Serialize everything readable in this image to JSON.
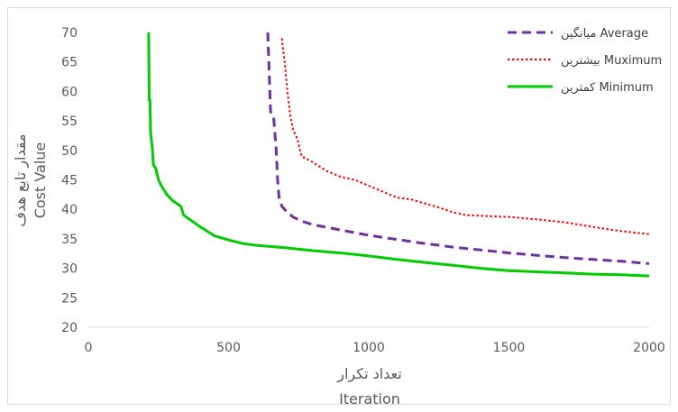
{
  "chart_data": {
    "type": "line",
    "xlabel": "Iteration",
    "xlabel_fa": "تعداد تکرار",
    "ylabel": "Cost Value",
    "ylabel_fa": "مقدار تابع هدف",
    "xlim": [
      0,
      2000
    ],
    "ylim": [
      20,
      70
    ],
    "xticks": [
      0,
      500,
      1000,
      1500,
      2000
    ],
    "yticks": [
      20,
      25,
      30,
      35,
      40,
      45,
      50,
      55,
      60,
      65,
      70
    ],
    "grid": false,
    "legend_position": "top-right",
    "series": [
      {
        "name": "Average",
        "name_fa": "میانگین",
        "label": "میانگین Average",
        "color": "#7030a0",
        "style": "dashed",
        "points": [
          [
            640,
            70
          ],
          [
            650,
            56.5
          ],
          [
            660,
            56
          ],
          [
            670,
            50
          ],
          [
            675,
            45
          ],
          [
            680,
            42
          ],
          [
            690,
            40.5
          ],
          [
            710,
            39.5
          ],
          [
            730,
            38.7
          ],
          [
            760,
            38
          ],
          [
            800,
            37.4
          ],
          [
            900,
            36.5
          ],
          [
            1000,
            35.6
          ],
          [
            1100,
            34.9
          ],
          [
            1200,
            34.2
          ],
          [
            1300,
            33.6
          ],
          [
            1400,
            33.1
          ],
          [
            1500,
            32.6
          ],
          [
            1600,
            32.2
          ],
          [
            1700,
            31.8
          ],
          [
            1800,
            31.5
          ],
          [
            1900,
            31.2
          ],
          [
            2000,
            30.8
          ]
        ]
      },
      {
        "name": "Muximum",
        "name_fa": "بیشترین",
        "label": "بیشترین Muximum",
        "color": "#ff0000",
        "style": "dotted",
        "points": [
          [
            690,
            69
          ],
          [
            700,
            65
          ],
          [
            710,
            60
          ],
          [
            720,
            56
          ],
          [
            730,
            53.5
          ],
          [
            745,
            52
          ],
          [
            760,
            49
          ],
          [
            800,
            48
          ],
          [
            850,
            46.5
          ],
          [
            900,
            45.5
          ],
          [
            950,
            45
          ],
          [
            1000,
            44
          ],
          [
            1050,
            43
          ],
          [
            1100,
            42
          ],
          [
            1150,
            41.7
          ],
          [
            1200,
            41
          ],
          [
            1250,
            40.3
          ],
          [
            1300,
            39.5
          ],
          [
            1350,
            39
          ],
          [
            1400,
            38.9
          ],
          [
            1500,
            38.7
          ],
          [
            1600,
            38.3
          ],
          [
            1700,
            37.8
          ],
          [
            1800,
            37
          ],
          [
            1900,
            36.3
          ],
          [
            2000,
            35.8
          ]
        ]
      },
      {
        "name": "Minimum",
        "name_fa": "کمترین",
        "label": "کمترین Minimum",
        "color": "#00cc00",
        "style": "solid",
        "points": [
          [
            215,
            70
          ],
          [
            217,
            58.5
          ],
          [
            220,
            58.5
          ],
          [
            222,
            53
          ],
          [
            228,
            50.5
          ],
          [
            232,
            47.5
          ],
          [
            240,
            47
          ],
          [
            250,
            45
          ],
          [
            260,
            44
          ],
          [
            280,
            42.5
          ],
          [
            300,
            41.5
          ],
          [
            330,
            40.5
          ],
          [
            340,
            39
          ],
          [
            370,
            38
          ],
          [
            400,
            37
          ],
          [
            450,
            35.5
          ],
          [
            500,
            34.8
          ],
          [
            550,
            34.2
          ],
          [
            600,
            33.9
          ],
          [
            700,
            33.5
          ],
          [
            800,
            33
          ],
          [
            900,
            32.6
          ],
          [
            1000,
            32.1
          ],
          [
            1100,
            31.5
          ],
          [
            1200,
            31
          ],
          [
            1300,
            30.5
          ],
          [
            1400,
            30
          ],
          [
            1500,
            29.6
          ],
          [
            1600,
            29.4
          ],
          [
            1700,
            29.2
          ],
          [
            1800,
            29
          ],
          [
            1900,
            28.9
          ],
          [
            2000,
            28.7
          ]
        ]
      }
    ]
  }
}
